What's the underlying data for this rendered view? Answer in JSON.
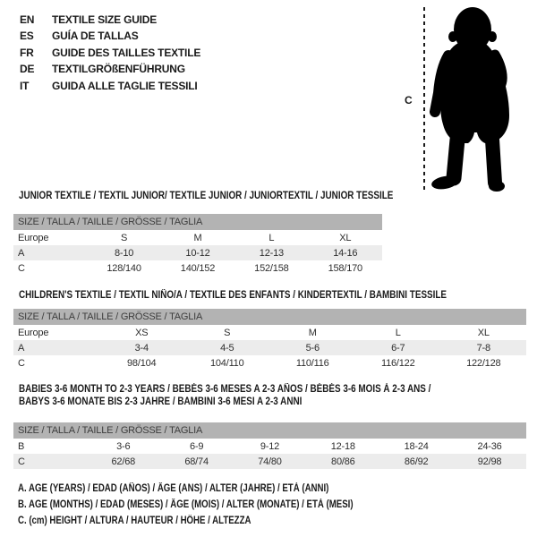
{
  "header": {
    "languages": [
      {
        "code": "EN",
        "label": "TEXTILE SIZE GUIDE"
      },
      {
        "code": "ES",
        "label": "GUÍA DE TALLAS"
      },
      {
        "code": "FR",
        "label": "GUIDE DES TAILLES TEXTILE"
      },
      {
        "code": "DE",
        "label": "TEXTILGRÖßENFÜHRUNG"
      },
      {
        "code": "IT",
        "label": "GUIDA ALLE TAGLIE TESSILI"
      }
    ]
  },
  "figure": {
    "height_marker_label": "C",
    "silhouette": "baby-toddler-standing"
  },
  "tables": [
    {
      "id": "junior",
      "title_lines": [
        "JUNIOR TEXTILE / TEXTIL JUNIOR/ TEXTILE JUNIOR / JUNIORTEXTIL / JUNIOR TESSILE"
      ],
      "size_header": "SIZE / TALLA / TAILLE / GRÖSSE / TAGLIA",
      "rows": [
        {
          "label": "Europe",
          "values": [
            "S",
            "M",
            "L",
            "XL"
          ]
        },
        {
          "label": "A",
          "values": [
            "8-10",
            "10-12",
            "12-13",
            "14-16"
          ]
        },
        {
          "label": "C",
          "values": [
            "128/140",
            "140/152",
            "152/158",
            "158/170"
          ]
        }
      ]
    },
    {
      "id": "children",
      "title_lines": [
        "CHILDREN'S TEXTILE / TEXTIL NIÑO/A / TEXTILE DES ENFANTS / KINDERTEXTIL / BAMBINI TESSILE"
      ],
      "size_header": "SIZE / TALLA / TAILLE / GRÖSSE / TAGLIA",
      "rows": [
        {
          "label": "Europe",
          "values": [
            "XS",
            "S",
            "M",
            "L",
            "XL"
          ]
        },
        {
          "label": "A",
          "values": [
            "3-4",
            "4-5",
            "5-6",
            "6-7",
            "7-8"
          ]
        },
        {
          "label": "C",
          "values": [
            "98/104",
            "104/110",
            "110/116",
            "116/122",
            "122/128"
          ]
        }
      ]
    },
    {
      "id": "babies",
      "title_lines": [
        "BABIES 3-6 MONTH TO 2-3 YEARS / BEBÉS 3-6 MESES A 2-3 AÑOS / BÉBÉS 3-6 MOIS À 2-3 ANS /",
        "BABYS 3-6 MONATE BIS 2-3 JAHRE / BAMBINI 3-6 MESI A 2-3 ANNI"
      ],
      "size_header": "SIZE / TALLA / TAILLE / GRÖSSE / TAGLIA",
      "rows": [
        {
          "label": "B",
          "values": [
            "3-6",
            "6-9",
            "9-12",
            "12-18",
            "18-24",
            "24-36"
          ]
        },
        {
          "label": "C",
          "values": [
            "62/68",
            "68/74",
            "74/80",
            "80/86",
            "86/92",
            "92/98"
          ]
        }
      ]
    }
  ],
  "footnotes": [
    "A. AGE (YEARS) / EDAD (AÑOS) / ÂGE (ANS) / ALTER (JAHRE) / ETÀ (ANNI)",
    "B. AGE (MONTHS) / EDAD (MESES) / ÂGE (MOIS) / ALTER (MONATE) / ETÀ (MESI)",
    "C. (cm) HEIGHT / ALTURA / HAUTEUR / HÖHE / ALTEZZA"
  ],
  "colors": {
    "band_gray": "#b3b3b3",
    "row_alt": "#ececec",
    "ink": "#1a1a1a",
    "silhouette": "#000000"
  }
}
